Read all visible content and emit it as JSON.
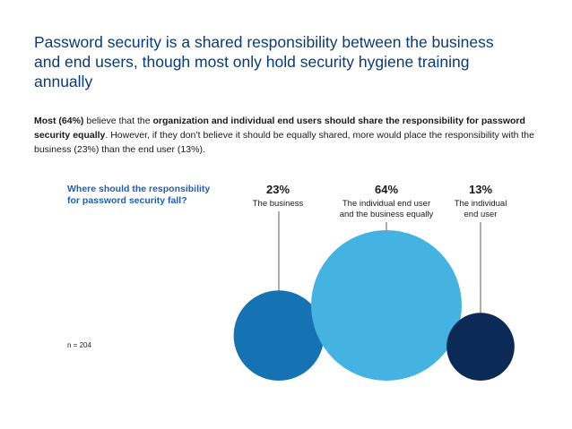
{
  "title": "Password security is a shared responsibility between the business and end users, though most only hold security hygiene training annually",
  "description": {
    "p1": "Most (64%)",
    "p2": " believe that the ",
    "p3": "organization and individual end users should share the responsibility for password security equally",
    "p4": ". However, if they don’t believe it should be equally shared, more would place the responsibility with the business (23%) than the end user (13%)."
  },
  "note": "n = 204",
  "chart_data": {
    "type": "bubble",
    "question": "Where should the responsibility for password security fall?",
    "categories": [
      "The business",
      "The individual end user and the business equally",
      "The individual end user"
    ],
    "values": [
      23,
      64,
      13
    ],
    "value_labels": [
      "23%",
      "64%",
      "13%"
    ],
    "label_lines": [
      [
        "The business"
      ],
      [
        "The individual end user",
        "and the business equally"
      ],
      [
        "The individual",
        "end user"
      ]
    ],
    "colors": [
      "#1573b3",
      "#45b3e2",
      "#0b2a55"
    ],
    "unit": "%"
  }
}
